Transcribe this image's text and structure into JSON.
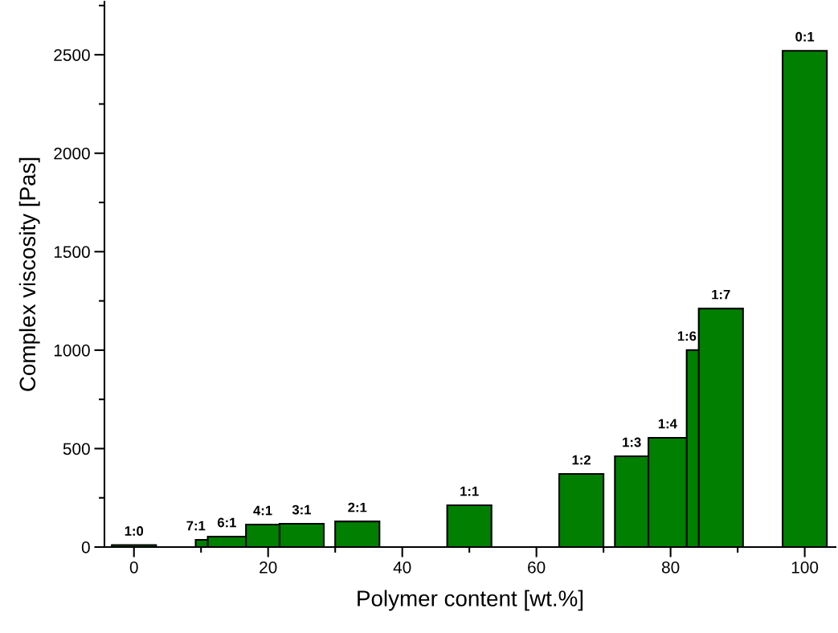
{
  "chart_data": {
    "type": "bar",
    "xlabel": "Polymer content [wt.%]",
    "ylabel": "Complex viscosity [Pas]",
    "x": [
      0,
      12.5,
      14.3,
      20,
      25,
      33.3,
      50,
      66.7,
      75,
      80,
      85.7,
      87.5,
      100
    ],
    "values": [
      10,
      37,
      53,
      114,
      118,
      130,
      212,
      371,
      461,
      555,
      1000,
      1211,
      2520
    ],
    "value_labels": [
      "1:0",
      "7:1",
      "6:1",
      "4:1",
      "3:1",
      "2:1",
      "1:1",
      "1:2",
      "1:3",
      "1:4",
      "1:6",
      "1:7",
      "0:1"
    ],
    "color": "#007f00",
    "xlim": [
      -4.4,
      104.6
    ],
    "xticks": [
      0,
      20,
      40,
      60,
      80,
      100
    ],
    "ylim": [
      0,
      2770
    ],
    "yticks": [
      0,
      500,
      1000,
      1500,
      2000,
      2500
    ],
    "grid": false,
    "legend": false
  }
}
